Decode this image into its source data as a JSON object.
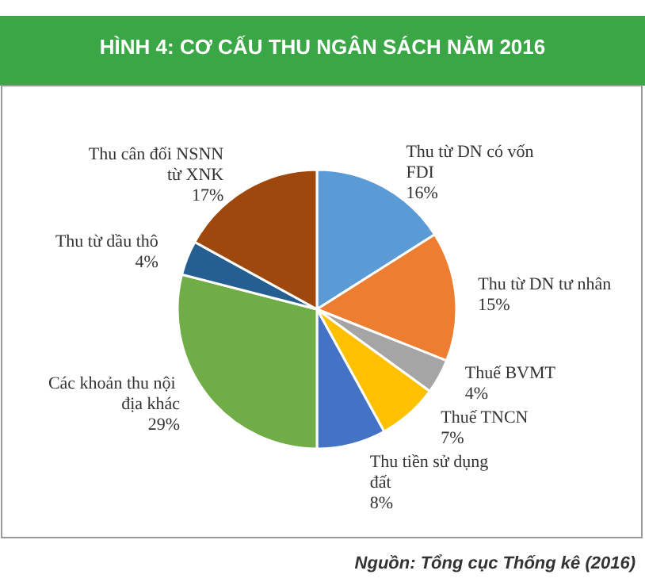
{
  "chart_data": {
    "type": "pie",
    "title": "HÌNH 4: CƠ CẤU THU NGÂN SÁCH NĂM 2016",
    "categories": [
      "Thu từ DN có vốn FDI",
      "Thu từ DN tư nhân",
      "Thuế BVMT",
      "Thuế TNCN",
      "Thu tiền sử dụng đất",
      "Các khoản thu nội địa khác",
      "Thu từ dầu thô",
      "Thu cân đối NSNN từ XNK"
    ],
    "values": [
      16,
      15,
      4,
      7,
      8,
      29,
      4,
      17
    ],
    "colors": [
      "#5b9bd5",
      "#ed7d31",
      "#a5a5a5",
      "#ffc000",
      "#4472c4",
      "#70ad47",
      "#255e91",
      "#9e480e"
    ],
    "value_labels": [
      "16%",
      "15%",
      "4%",
      "7%",
      "8%",
      "29%",
      "4%",
      "17%"
    ],
    "annotations": [
      "Nguồn: Tổng cục Thống kê (2016)"
    ]
  }
}
